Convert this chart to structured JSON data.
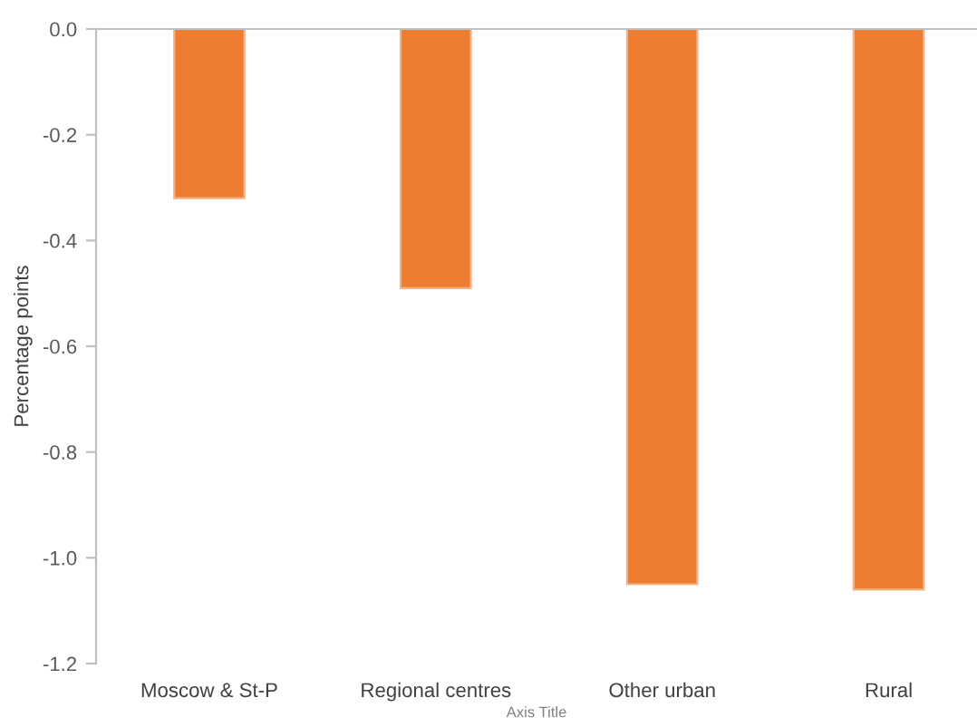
{
  "chart_data": {
    "type": "bar",
    "ylabel": "Percentage points",
    "xlabel": "Axis Title",
    "categories": [
      "Moscow & St-P",
      "Regional centres",
      "Other urban",
      "Rural"
    ],
    "values": [
      -0.32,
      -0.49,
      -1.05,
      -1.06
    ],
    "color": "#ed7d31",
    "ylim": [
      -1.2,
      0.0
    ],
    "yticks": [
      {
        "value": 0.0,
        "label": "0.0"
      },
      {
        "value": -0.2,
        "label": "-0.2"
      },
      {
        "value": -0.4,
        "label": "-0.4"
      },
      {
        "value": -0.6,
        "label": "-0.6"
      },
      {
        "value": -0.8,
        "label": "-0.8"
      },
      {
        "value": -1.0,
        "label": "-1.0"
      },
      {
        "value": -1.2,
        "label": "-1.2"
      }
    ],
    "grid": false,
    "legend": false
  }
}
